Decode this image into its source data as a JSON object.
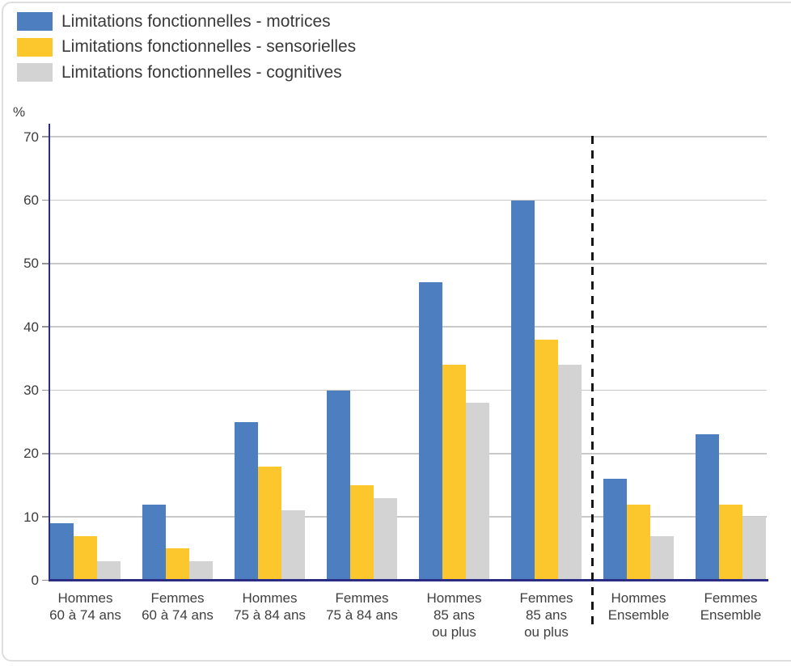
{
  "chart_data": {
    "type": "bar",
    "title": "",
    "ylabel": "%",
    "ylim": [
      0,
      70
    ],
    "yticks": [
      0,
      10,
      20,
      30,
      40,
      50,
      60,
      70
    ],
    "grid": true,
    "legend_position": "top-left",
    "categories": [
      {
        "lines": [
          "Hommes",
          "60 à 74 ans"
        ]
      },
      {
        "lines": [
          "Femmes",
          "60 à 74 ans"
        ]
      },
      {
        "lines": [
          "Hommes",
          "75 à 84 ans"
        ]
      },
      {
        "lines": [
          "Femmes",
          "75 à 84 ans"
        ]
      },
      {
        "lines": [
          "Hommes",
          "85 ans",
          "ou plus"
        ]
      },
      {
        "lines": [
          "Femmes",
          "85 ans",
          "ou plus"
        ]
      },
      {
        "lines": [
          "Hommes",
          "Ensemble"
        ]
      },
      {
        "lines": [
          "Femmes",
          "Ensemble"
        ]
      }
    ],
    "series": [
      {
        "name": "Limitations fonctionnelles - motrices",
        "color": "#4d7ebf",
        "values": [
          9,
          12,
          25,
          30,
          47,
          60,
          16,
          23
        ]
      },
      {
        "name": "Limitations fonctionnelles - sensorielles",
        "color": "#fcc72c",
        "values": [
          7,
          5,
          18,
          15,
          34,
          38,
          12,
          12
        ]
      },
      {
        "name": "Limitations fonctionnelles - cognitives",
        "color": "#d3d3d3",
        "values": [
          3,
          3,
          11,
          13,
          28,
          34,
          7,
          10
        ]
      }
    ],
    "separator_after_category_index": 5
  },
  "styles": {
    "axis_color": "#2a2d86",
    "grid_color": "#c9c9c9",
    "separator_color": "#161616",
    "text_color": "#3c3c3c",
    "card_border_color": "#dedede"
  }
}
